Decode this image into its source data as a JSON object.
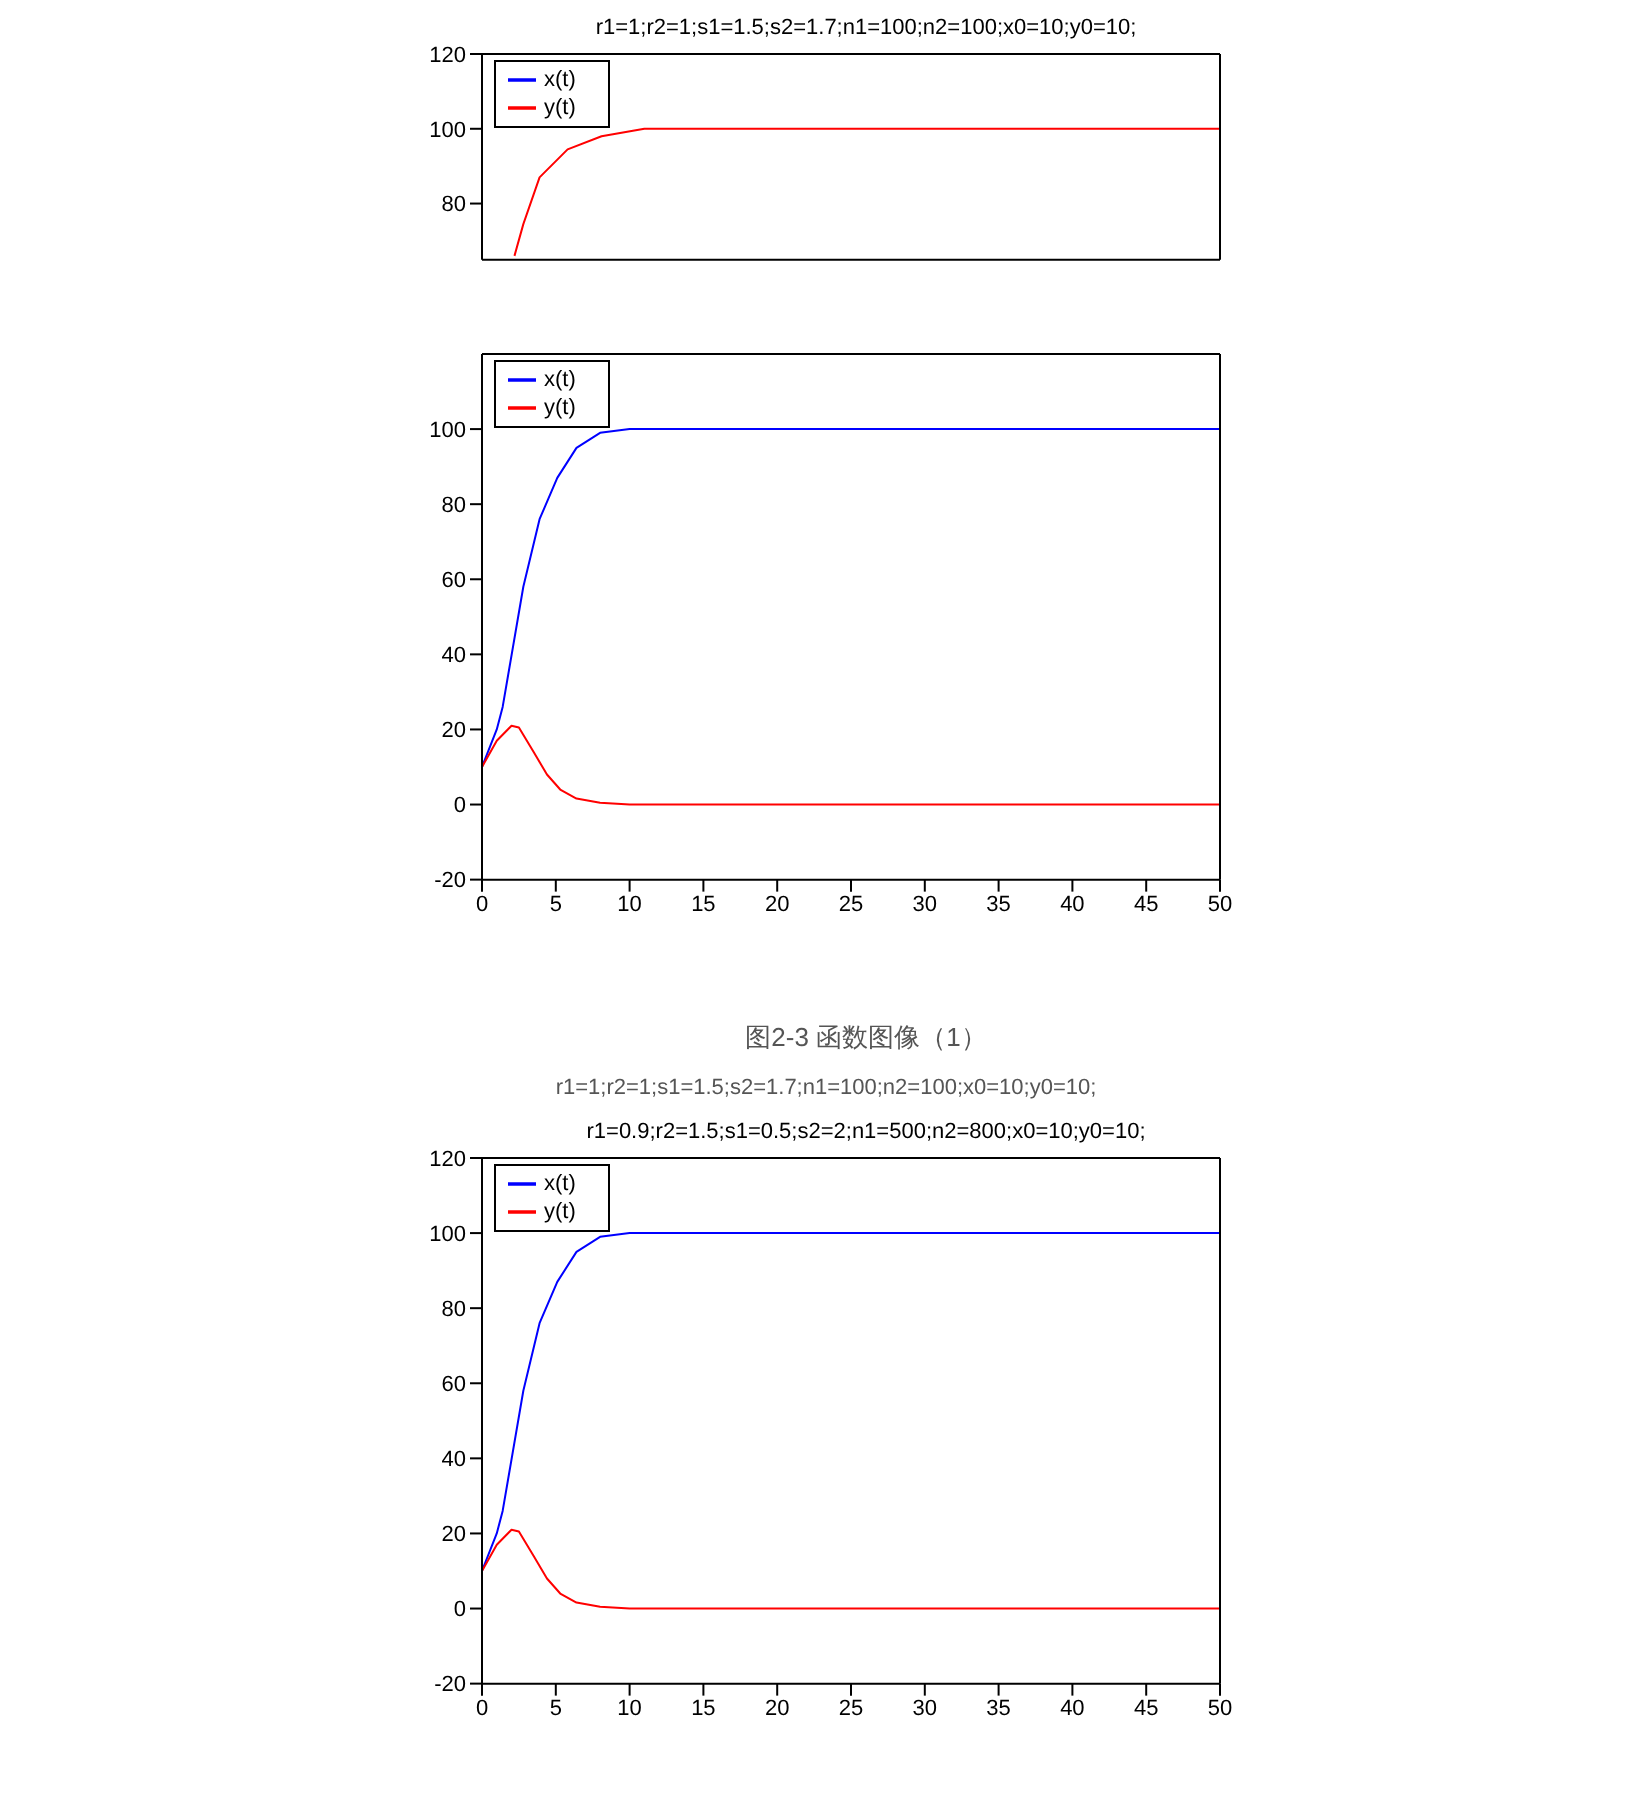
{
  "chart_data": [
    {
      "type": "line",
      "title": "r1=1;r2=1;s1=1.5;s2=1.7;n1=100;n2=100;x0=10;y0=10;",
      "xlim": [
        0,
        50
      ],
      "ylim": [
        65,
        120
      ],
      "yticks": [
        80,
        100,
        120
      ],
      "tick_labels": "y",
      "legend": "top left",
      "marker": "none",
      "line_style": "solid",
      "series": [
        {
          "name": "x(t)",
          "color": "#0000ff"
        },
        {
          "name": "y(t)",
          "color": "#ff0000",
          "x": [
            2.2,
            2.8,
            3.9,
            5.8,
            8.1,
            11,
            20,
            30,
            40,
            50
          ],
          "values": [
            66,
            74.5,
            87,
            94.5,
            98,
            100,
            100,
            100,
            100,
            100
          ]
        }
      ]
    },
    {
      "type": "line",
      "xlim": [
        0,
        50
      ],
      "ylim": [
        -20,
        120
      ],
      "xticks": [
        0,
        5,
        10,
        15,
        20,
        25,
        30,
        35,
        40,
        45,
        50
      ],
      "yticks": [
        -20,
        0,
        20,
        40,
        60,
        80,
        100
      ],
      "legend": "top left",
      "marker": "none",
      "line_style": "solid",
      "annotations": [
        "图2-3 函数图像（1）",
        "r1=1;r2=1;s1=1.5;s2=1.7;n1=100;n2=100;x0=10;y0=10;"
      ],
      "series": [
        {
          "name": "x(t)",
          "color": "#0000ff",
          "x": [
            0,
            1,
            1.4,
            2.8,
            3.9,
            5.1,
            6.4,
            8,
            10,
            20,
            30,
            40,
            50
          ],
          "values": [
            10,
            20,
            26,
            58,
            76,
            87,
            95,
            99,
            100,
            100,
            100,
            100,
            100
          ]
        },
        {
          "name": "y(t)",
          "color": "#ff0000",
          "x": [
            0,
            1,
            2,
            2.5,
            3.5,
            4.4,
            5.3,
            6.4,
            8,
            10,
            20,
            30,
            40,
            50
          ],
          "values": [
            10,
            17,
            21,
            20.5,
            14,
            8,
            4,
            1.6,
            0.5,
            0,
            0,
            0,
            0,
            0
          ]
        }
      ]
    },
    {
      "type": "line",
      "title": "r1=0.9;r2=1.5;s1=0.5;s2=2;n1=500;n2=800;x0=10;y0=10;",
      "xlim": [
        0,
        50
      ],
      "ylim": [
        -20,
        120
      ],
      "xticks": [
        0,
        5,
        10,
        15,
        20,
        25,
        30,
        35,
        40,
        45,
        50
      ],
      "yticks": [
        -20,
        0,
        20,
        40,
        60,
        80,
        100,
        120
      ],
      "legend": "top left",
      "marker": "none",
      "line_style": "solid",
      "series": [
        {
          "name": "x(t)",
          "color": "#0000ff",
          "x": [
            0,
            1,
            1.4,
            2.8,
            3.9,
            5.1,
            6.4,
            8,
            10,
            20,
            30,
            40,
            50
          ],
          "values": [
            10,
            20,
            26,
            58,
            76,
            87,
            95,
            99,
            100,
            100,
            100,
            100,
            100
          ]
        },
        {
          "name": "y(t)",
          "color": "#ff0000",
          "x": [
            0,
            1,
            2,
            2.5,
            3.5,
            4.4,
            5.3,
            6.4,
            8,
            10,
            20,
            30,
            40,
            50
          ],
          "values": [
            10,
            17,
            21,
            20.5,
            14,
            8,
            4,
            1.6,
            0.5,
            0,
            0,
            0,
            0,
            0
          ]
        }
      ]
    }
  ]
}
